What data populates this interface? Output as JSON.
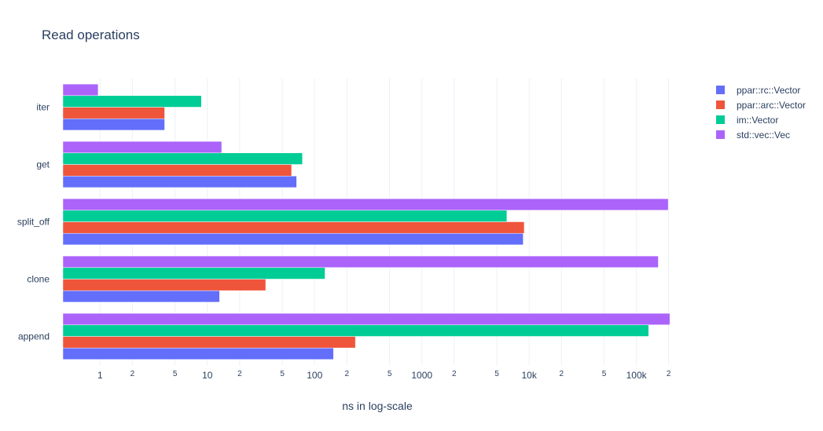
{
  "chart_data": {
    "type": "bar",
    "orientation": "horizontal",
    "title": "Read operations",
    "xlabel": "ns in log-scale",
    "ylabel": "",
    "x_scale": "log",
    "xlim": [
      0.45,
      215000
    ],
    "grid": true,
    "legend_position": "top-right",
    "categories": [
      "append",
      "clone",
      "split_off",
      "get",
      "iter"
    ],
    "x_tick_labels": [
      {
        "value": 1,
        "label": "1",
        "major": true
      },
      {
        "value": 2,
        "label": "2",
        "major": false
      },
      {
        "value": 5,
        "label": "5",
        "major": false
      },
      {
        "value": 10,
        "label": "10",
        "major": true
      },
      {
        "value": 20,
        "label": "2",
        "major": false
      },
      {
        "value": 50,
        "label": "5",
        "major": false
      },
      {
        "value": 100,
        "label": "100",
        "major": true
      },
      {
        "value": 200,
        "label": "2",
        "major": false
      },
      {
        "value": 500,
        "label": "5",
        "major": false
      },
      {
        "value": 1000,
        "label": "1000",
        "major": true
      },
      {
        "value": 2000,
        "label": "2",
        "major": false
      },
      {
        "value": 5000,
        "label": "5",
        "major": false
      },
      {
        "value": 10000,
        "label": "10k",
        "major": true
      },
      {
        "value": 20000,
        "label": "2",
        "major": false
      },
      {
        "value": 50000,
        "label": "5",
        "major": false
      },
      {
        "value": 100000,
        "label": "100k",
        "major": true
      },
      {
        "value": 200000,
        "label": "2",
        "major": false
      }
    ],
    "series": [
      {
        "name": "ppar::rc::Vector",
        "color": "#636efa",
        "values": [
          150,
          13,
          8800,
          68,
          4
        ]
      },
      {
        "name": "ppar::arc::Vector",
        "color": "#ef553b",
        "values": [
          240,
          35,
          9000,
          61,
          4
        ]
      },
      {
        "name": "im::Vector",
        "color": "#00cc96",
        "values": [
          130000,
          125,
          6200,
          77,
          8.8
        ]
      },
      {
        "name": "std::vec::Vec",
        "color": "#ab63fa",
        "values": [
          205000,
          160000,
          198000,
          13.6,
          0.96
        ]
      }
    ]
  }
}
